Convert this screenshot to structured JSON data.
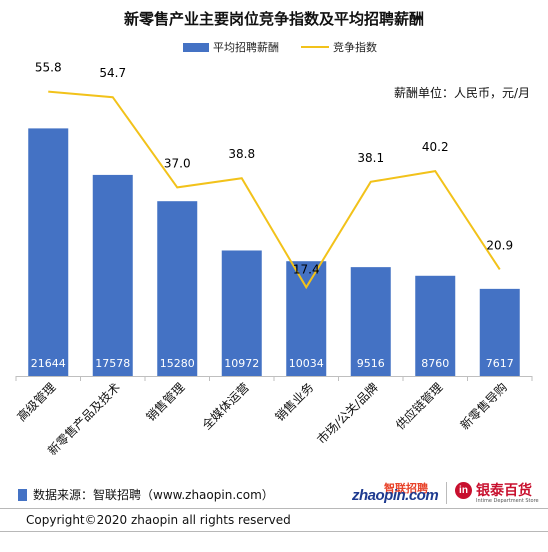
{
  "header": {
    "title": "新零售产业主要岗位竞争指数及平均招聘薪酬"
  },
  "legend": {
    "bar_label": "平均招聘薪酬",
    "line_label": "竞争指数"
  },
  "unit_note": "薪酬单位：人民币，元/月",
  "colors": {
    "bar": "#4472C4",
    "line": "#F2C21A",
    "bar_label": "#ffffff"
  },
  "chart_data": {
    "type": "bar",
    "categories": [
      "高级管理",
      "新零售产品及技术",
      "销售管理",
      "全媒体运营",
      "销售业务",
      "市场/公关/品牌",
      "供应链管理",
      "新零售导购"
    ],
    "series": [
      {
        "name": "平均招聘薪酬",
        "type": "bar",
        "values": [
          21644,
          17578,
          15280,
          10972,
          10034,
          9516,
          8760,
          7617
        ]
      },
      {
        "name": "竞争指数",
        "type": "line",
        "values": [
          55.8,
          54.7,
          37.0,
          38.8,
          17.4,
          38.1,
          40.2,
          20.9
        ]
      }
    ],
    "bar_labels": [
      "21644",
      "17578",
      "15280",
      "10972",
      "10034",
      "9516",
      "8760",
      "7617"
    ],
    "line_labels": [
      "55.8",
      "54.7",
      "37.0",
      "38.8",
      "17.4",
      "38.1",
      "40.2",
      "20.9"
    ],
    "bar_ylim": [
      0,
      25000
    ],
    "line_ylim": [
      0,
      62
    ],
    "grid": false,
    "legend_position": "top-center"
  },
  "footer": {
    "source": "数据来源：智联招聘（www.zhaopin.com）",
    "copyright": "Copyright©2020 zhaopin all rights reserved"
  },
  "logos": {
    "zhaopin_cn": "智联招聘",
    "zhaopin_en": "zhaopin.com",
    "yintai_mark": "in",
    "yintai_cn": "银泰百货",
    "yintai_en": "Intime Department Store"
  }
}
